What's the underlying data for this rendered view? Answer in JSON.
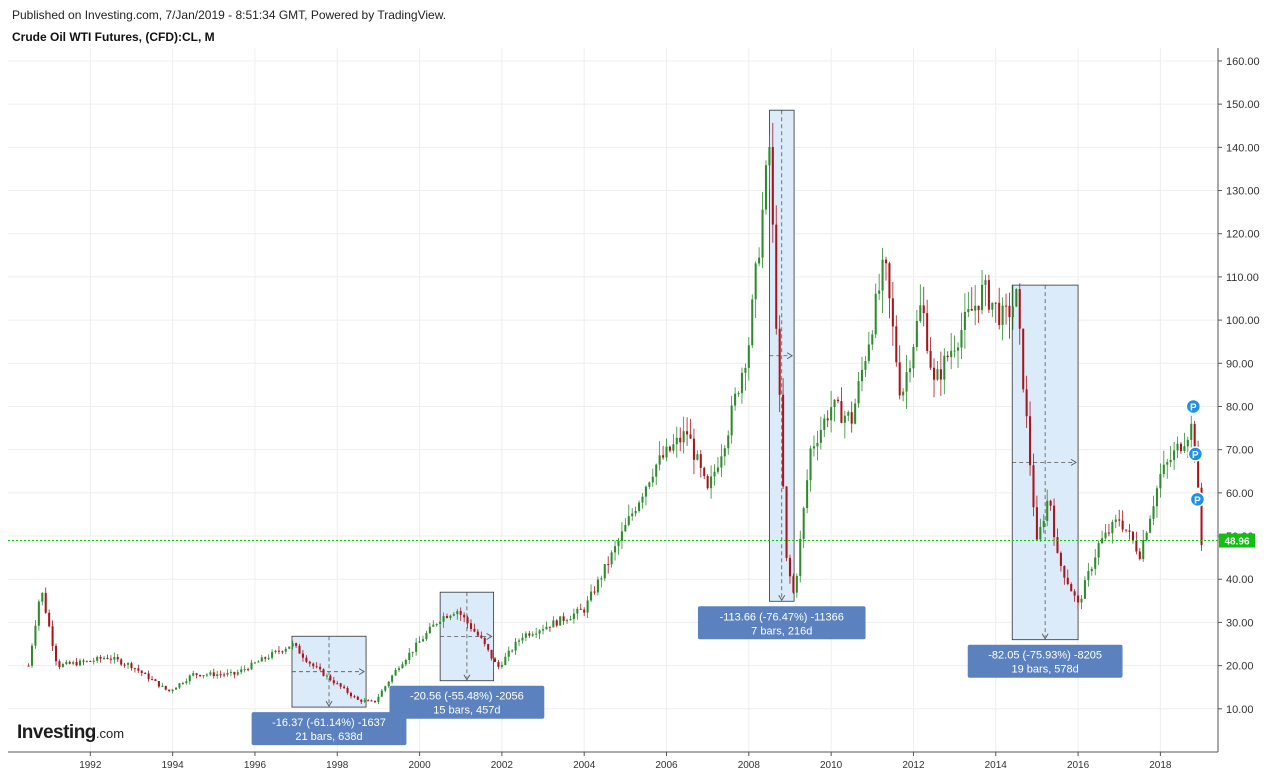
{
  "header": {
    "published": "Published on Investing.com, 7/Jan/2019 - 8:51:34 GMT, Powered by TradingView.",
    "symbol": "Crude Oil WTI Futures, (CFD):CL, M"
  },
  "logo": {
    "main": "Investing",
    "suffix": ".com"
  },
  "colors": {
    "up": "#2e8b2e",
    "down": "#a8151b",
    "grid": "#eeeeee",
    "box_fill": "#dcebfa",
    "box_stroke": "#333333",
    "label_bg": "#5b82bf",
    "price_line": "#00cc00",
    "marker": "#1e90e6"
  },
  "chart_data": {
    "type": "candlestick",
    "title": "Crude Oil WTI Futures, (CFD):CL, M",
    "interval": "M",
    "y_range": [
      0,
      163
    ],
    "y_ticks": [
      "10.00",
      "20.00",
      "30.00",
      "40.00",
      "50.00",
      "60.00",
      "70.00",
      "80.00",
      "90.00",
      "100.00",
      "110.00",
      "120.00",
      "130.00",
      "140.00",
      "150.00",
      "160.00"
    ],
    "x_ticks": [
      "1992",
      "1994",
      "1996",
      "1998",
      "2000",
      "2002",
      "2004",
      "2006",
      "2008",
      "2010",
      "2012",
      "2014",
      "2016",
      "2018"
    ],
    "last_price": "48.96",
    "trajectory": [
      [
        1990.5,
        20
      ],
      [
        1990.8,
        38
      ],
      [
        1991.2,
        20
      ],
      [
        1992.0,
        21
      ],
      [
        1992.4,
        22
      ],
      [
        1993.0,
        20
      ],
      [
        1993.9,
        14
      ],
      [
        1994.5,
        18
      ],
      [
        1995.5,
        18
      ],
      [
        1996.9,
        25
      ],
      [
        1997.4,
        20
      ],
      [
        1998.5,
        12
      ],
      [
        1998.9,
        11.5
      ],
      [
        1999.5,
        20
      ],
      [
        2000.5,
        31
      ],
      [
        2000.9,
        33
      ],
      [
        2001.5,
        26
      ],
      [
        2001.9,
        19.5
      ],
      [
        2002.5,
        27
      ],
      [
        2003.3,
        30
      ],
      [
        2004.0,
        33
      ],
      [
        2004.8,
        48
      ],
      [
        2005.7,
        66
      ],
      [
        2006.5,
        74
      ],
      [
        2007.0,
        60
      ],
      [
        2007.5,
        75
      ],
      [
        2008.0,
        95
      ],
      [
        2008.5,
        140
      ],
      [
        2008.9,
        45
      ],
      [
        2009.1,
        36
      ],
      [
        2009.5,
        70
      ],
      [
        2010.0,
        80
      ],
      [
        2010.5,
        77
      ],
      [
        2011.3,
        113
      ],
      [
        2011.7,
        82
      ],
      [
        2012.2,
        104
      ],
      [
        2012.5,
        85
      ],
      [
        2013.0,
        95
      ],
      [
        2013.7,
        107
      ],
      [
        2014.2,
        100
      ],
      [
        2014.5,
        105
      ],
      [
        2015.0,
        48
      ],
      [
        2015.3,
        60
      ],
      [
        2015.5,
        45
      ],
      [
        2016.0,
        34
      ],
      [
        2016.5,
        48
      ],
      [
        2017.0,
        54
      ],
      [
        2017.5,
        46
      ],
      [
        2018.0,
        64
      ],
      [
        2018.8,
        76
      ],
      [
        2019.0,
        48
      ]
    ],
    "annotations": [
      {
        "label1": "-16.37 (-61.14%) -1637",
        "label2": "21 bars, 638d",
        "x0": 1996.9,
        "x1": 1998.7,
        "y_top": 26.8,
        "y_bot": 10.4,
        "dir": "down"
      },
      {
        "label1": "-20.56 (-55.48%) -2056",
        "label2": "15 bars, 457d",
        "x0": 2000.5,
        "x1": 2001.8,
        "y_top": 37.0,
        "y_bot": 16.5,
        "dir": "down"
      },
      {
        "label1": "-113.66 (-76.47%) -11366",
        "label2": "7 bars, 216d",
        "x0": 2008.5,
        "x1": 2009.1,
        "y_top": 148.6,
        "y_bot": 34.9,
        "dir": "down"
      },
      {
        "label1": "-82.05 (-75.93%) -8205",
        "label2": "19 bars, 578d",
        "x0": 2014.4,
        "x1": 2016.0,
        "y_top": 108.1,
        "y_bot": 26.0,
        "dir": "down"
      }
    ],
    "markers": [
      {
        "label": "P",
        "x": 2018.8,
        "y": 80.0
      },
      {
        "label": "P",
        "x": 2018.85,
        "y": 69.0
      },
      {
        "label": "P",
        "x": 2018.9,
        "y": 58.5
      }
    ]
  }
}
